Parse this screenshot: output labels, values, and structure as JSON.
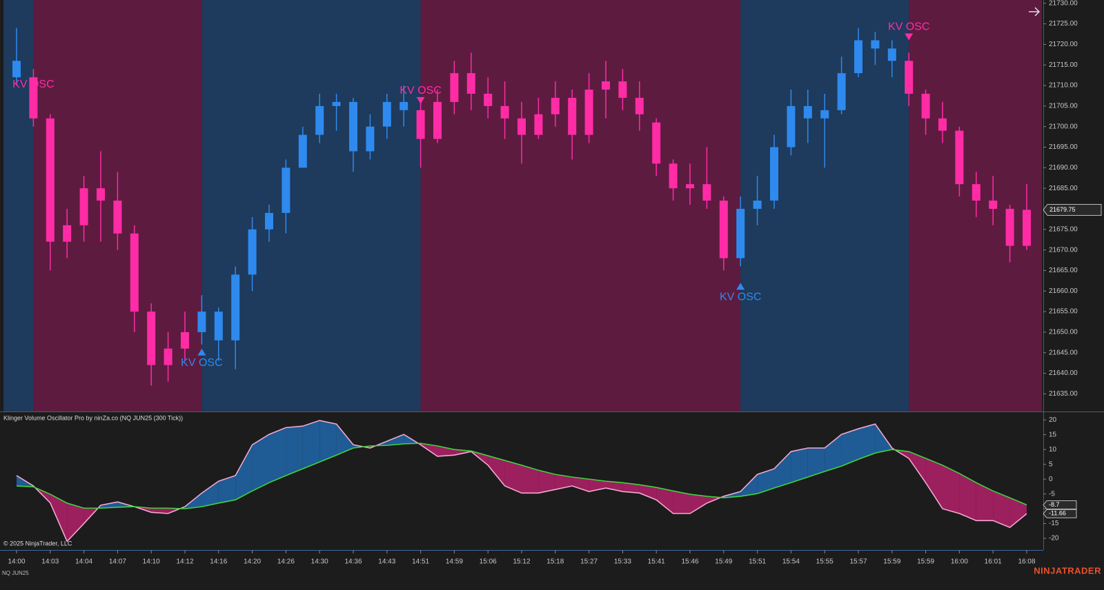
{
  "chart_data": [
    {
      "type": "candlestick",
      "categories": [
        "14:00",
        null,
        "14:03",
        null,
        "14:04",
        null,
        "14:07",
        null,
        "14:10",
        null,
        "14:12",
        null,
        "14:16",
        null,
        "14:20",
        null,
        "14:26",
        null,
        "14:30",
        null,
        "14:36",
        null,
        "14:43",
        null,
        "14:51",
        null,
        "14:59",
        null,
        "15:06",
        null,
        "15:12",
        null,
        "15:18",
        null,
        "15:27",
        null,
        "15:33",
        null,
        "15:41",
        null,
        "15:46",
        null,
        "15:49",
        null,
        "15:51",
        null,
        "15:54",
        null,
        "15:55",
        null,
        "15:57",
        null,
        "15:59",
        null,
        "15:59",
        null,
        "16:00",
        null,
        "16:01",
        null,
        "16:08"
      ],
      "open": [
        21716,
        21712,
        21702,
        21672,
        21676,
        21685,
        21682,
        21674,
        21655,
        21642,
        21646,
        21650,
        21655,
        21648,
        21664,
        21675,
        21679,
        21690,
        21698,
        21705,
        21706,
        21694,
        21700,
        21706,
        21704,
        21697,
        21706,
        21713,
        21708,
        21705,
        21702,
        21698,
        21703,
        21707,
        21698,
        21709,
        21711,
        21707,
        21701,
        21691,
        21685,
        21686,
        21682,
        21668,
        21680,
        21682,
        21695,
        21705,
        21702,
        21704,
        21713,
        21721,
        21719,
        21716,
        21708,
        21702,
        21699,
        21686,
        21682,
        21680,
        21671
      ],
      "high": [
        21724,
        21714,
        21703,
        21680,
        21688,
        21694,
        21689,
        21676,
        21657,
        21650,
        21655,
        21659,
        21656,
        21666,
        21678,
        21681,
        21692,
        21700,
        21708,
        21708,
        21707,
        21703,
        21708,
        21710,
        21707,
        21709,
        21716,
        21718,
        21712,
        21711,
        21706,
        21707,
        21711,
        21709,
        21713,
        21716,
        21714,
        21711,
        21702,
        21692,
        21691,
        21695,
        21683,
        21683,
        21688,
        21698,
        21709,
        21709,
        21708,
        21717,
        21724,
        21723,
        21721,
        21718,
        21709,
        21706,
        21700,
        21689,
        21688,
        21681,
        21686
      ],
      "low": [
        21710,
        21700,
        21665,
        21668,
        21672,
        21672,
        21670,
        21650,
        21637,
        21638,
        21643,
        21647,
        21643,
        21641,
        21660,
        21672,
        21674,
        21690,
        21696,
        21699,
        21689,
        21692,
        21697,
        21700,
        21690,
        21696,
        21703,
        21704,
        21702,
        21697,
        21691,
        21697,
        21700,
        21692,
        21696,
        21702,
        21704,
        21699,
        21688,
        21682,
        21681,
        21680,
        21665,
        21666,
        21676,
        21680,
        21693,
        21696,
        21690,
        21703,
        21712,
        21715,
        21712,
        21705,
        21698,
        21696,
        21683,
        21678,
        21676,
        21667,
        21670
      ],
      "close": [
        21712,
        21702,
        21672,
        21676,
        21685,
        21682,
        21674,
        21655,
        21642,
        21646,
        21650,
        21655,
        21648,
        21664,
        21675,
        21679,
        21690,
        21698,
        21705,
        21706,
        21694,
        21700,
        21706,
        21704,
        21697,
        21706,
        21713,
        21708,
        21705,
        21702,
        21698,
        21703,
        21707,
        21698,
        21709,
        21711,
        21707,
        21703,
        21691,
        21685,
        21686,
        21682,
        21668,
        21680,
        21682,
        21695,
        21705,
        21702,
        21704,
        21713,
        21721,
        21719,
        21716,
        21708,
        21702,
        21699,
        21686,
        21682,
        21680,
        21671,
        21679.75
      ],
      "ylim": [
        21630.7,
        21730.8
      ],
      "yticks": [
        {
          "value": 21635,
          "label": "21635.00"
        },
        {
          "value": 21640,
          "label": "21640.00"
        },
        {
          "value": 21645,
          "label": "21645.00"
        },
        {
          "value": 21650,
          "label": "21650.00"
        },
        {
          "value": 21655,
          "label": "21655.00"
        },
        {
          "value": 21660,
          "label": "21660.00"
        },
        {
          "value": 21665,
          "label": "21665.00"
        },
        {
          "value": 21670,
          "label": "21670.00"
        },
        {
          "value": 21675,
          "label": "21675.00"
        },
        {
          "value": 21680,
          "label": "21680.00"
        },
        {
          "value": 21685,
          "label": "21685.00"
        },
        {
          "value": 21690,
          "label": "21690.00"
        },
        {
          "value": 21695,
          "label": "21695.00"
        },
        {
          "value": 21700,
          "label": "21700.00"
        },
        {
          "value": 21705,
          "label": "21705.00"
        },
        {
          "value": 21710,
          "label": "21710.00"
        },
        {
          "value": 21715,
          "label": "21715.00"
        },
        {
          "value": 21720,
          "label": "21720.00"
        },
        {
          "value": 21725,
          "label": "21725.00"
        },
        {
          "value": 21730,
          "label": "21730.00"
        }
      ],
      "signals": [
        {
          "label": "KV OSC",
          "index": 1,
          "price": 21707,
          "direction": "down"
        },
        {
          "label": "KV OSC",
          "index": 11,
          "price": 21646,
          "direction": "up"
        },
        {
          "label": "KV OSC",
          "index": 24,
          "price": 21705.5,
          "direction": "down"
        },
        {
          "label": "KV OSC",
          "index": 43,
          "price": 21662,
          "direction": "up"
        },
        {
          "label": "KV OSC",
          "index": 53,
          "price": 21721,
          "direction": "down"
        }
      ],
      "up_color": "#2e8aee",
      "down_color": "#ff2ca6",
      "up_background": "#1e3a5c",
      "down_background": "#5e1b40",
      "grid": false
    },
    {
      "type": "line",
      "title": "Klinger Volume Oscillator Pro by ninZa.co (NQ JUN25 (300 Tick))",
      "series": [
        {
          "color": "#f3a9cf",
          "values": [
            1.2,
            -2.3,
            -8,
            -21,
            -15,
            -8.8,
            -7.7,
            -9.3,
            -11.2,
            -11.6,
            -9.3,
            -4.7,
            -0.7,
            1.2,
            11.6,
            15.1,
            17.4,
            17.9,
            19.8,
            18.6,
            11.6,
            10.5,
            12.8,
            15.1,
            11.6,
            7.7,
            8.1,
            9.3,
            4.7,
            -2.3,
            -4.7,
            -4.7,
            -3.5,
            -2.3,
            -4.2,
            -3,
            -4.2,
            -4.7,
            -7,
            -11.6,
            -11.6,
            -8.1,
            -5.8,
            -4.2,
            1.6,
            3.5,
            9.3,
            10.5,
            10.5,
            15.1,
            17,
            18.6,
            10.5,
            7,
            -1.2,
            -10,
            -11.6,
            -14,
            -14,
            -16.3,
            -11.66
          ]
        },
        {
          "color": "#3fd43f",
          "values": [
            -2.3,
            -2.6,
            -5.1,
            -8.1,
            -9.8,
            -9.8,
            -9.5,
            -9.3,
            -9.8,
            -9.8,
            -10,
            -9.3,
            -8.1,
            -7,
            -4,
            -1.2,
            1.2,
            3.5,
            5.8,
            8.1,
            10.5,
            11.2,
            11.4,
            11.9,
            12.1,
            11.2,
            10,
            9.5,
            7.9,
            6.3,
            4.7,
            3,
            1.6,
            0.7,
            0,
            -0.7,
            -1.2,
            -1.9,
            -2.8,
            -4,
            -5.1,
            -5.8,
            -6.3,
            -5.8,
            -4.9,
            -3,
            -1.2,
            0.7,
            2.6,
            4.4,
            6.7,
            8.8,
            10,
            9.3,
            7,
            4.7,
            1.9,
            -1.2,
            -4,
            -6.3,
            -8.7
          ]
        }
      ],
      "fill_up": "#1f5b94",
      "fill_down": "#9c1f5e",
      "ylim": [
        -23.7,
        22.6
      ],
      "yticks": [
        -20,
        -15,
        -10,
        -5,
        0,
        5,
        10,
        15,
        20
      ],
      "grid": false
    }
  ],
  "copyright": "© 2025 NinjaTrader, LLC",
  "instrument": "NQ JUN25",
  "logo": "NINJATRADER"
}
